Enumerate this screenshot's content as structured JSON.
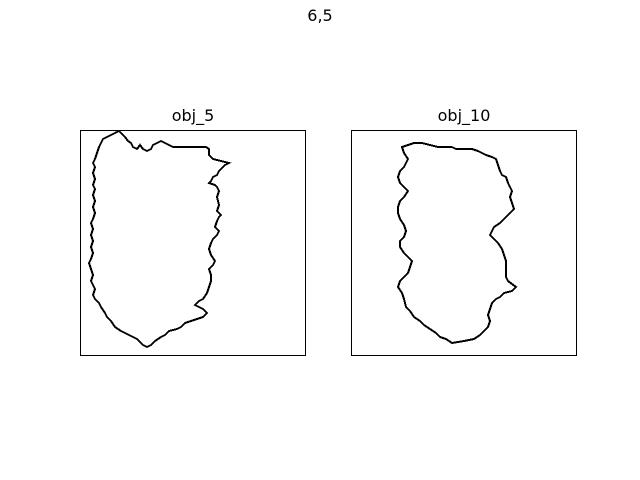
{
  "figure": {
    "title": "6,5"
  },
  "panels": [
    {
      "title": "obj_5",
      "outline_color": "#000000",
      "frame_color": "#000000"
    },
    {
      "title": "obj_10",
      "outline_color": "#000000",
      "frame_color": "#000000"
    }
  ]
}
